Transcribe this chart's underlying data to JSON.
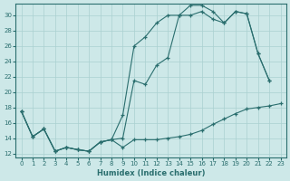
{
  "xlabel": "Humidex (Indice chaleur)",
  "bg_color": "#cde8e8",
  "grid_color": "#aad0d0",
  "line_color": "#2a6e6e",
  "xlim": [
    -0.5,
    23.5
  ],
  "ylim": [
    11.5,
    31.5
  ],
  "xticks": [
    0,
    1,
    2,
    3,
    4,
    5,
    6,
    7,
    8,
    9,
    10,
    11,
    12,
    13,
    14,
    15,
    16,
    17,
    18,
    19,
    20,
    21,
    22,
    23
  ],
  "yticks": [
    12,
    14,
    16,
    18,
    20,
    22,
    24,
    26,
    28,
    30
  ],
  "line1_x": [
    0,
    1,
    2,
    3,
    4,
    5,
    6,
    7,
    8,
    9,
    10,
    11,
    12,
    13,
    14,
    15,
    16,
    17,
    18,
    19,
    20,
    21,
    22,
    23
  ],
  "line1_y": [
    17.5,
    14.2,
    15.2,
    12.3,
    12.8,
    12.5,
    12.3,
    13.5,
    13.8,
    12.8,
    13.8,
    13.8,
    13.8,
    14.0,
    14.2,
    14.5,
    15.0,
    15.8,
    16.5,
    17.2,
    17.8,
    18.0,
    18.2,
    18.5
  ],
  "line2_x": [
    0,
    1,
    2,
    3,
    4,
    5,
    6,
    7,
    8,
    9,
    10,
    11,
    12,
    13,
    14,
    15,
    16,
    17,
    18,
    19,
    20,
    21,
    22
  ],
  "line2_y": [
    17.5,
    14.2,
    15.2,
    12.3,
    12.8,
    12.5,
    12.3,
    13.5,
    13.8,
    14.0,
    21.5,
    21.0,
    23.5,
    24.5,
    30.0,
    30.0,
    30.5,
    29.5,
    29.0,
    30.5,
    30.2,
    25.0,
    21.5
  ],
  "line3_x": [
    0,
    1,
    2,
    3,
    4,
    5,
    6,
    7,
    8,
    9,
    10,
    11,
    12,
    13,
    14,
    15,
    16,
    17,
    18,
    19,
    20,
    21,
    22
  ],
  "line3_y": [
    17.5,
    14.2,
    15.2,
    12.3,
    12.8,
    12.5,
    12.3,
    13.5,
    13.8,
    17.0,
    26.0,
    27.2,
    29.0,
    30.0,
    30.0,
    31.3,
    31.3,
    30.5,
    29.0,
    30.5,
    30.2,
    25.0,
    21.5
  ]
}
